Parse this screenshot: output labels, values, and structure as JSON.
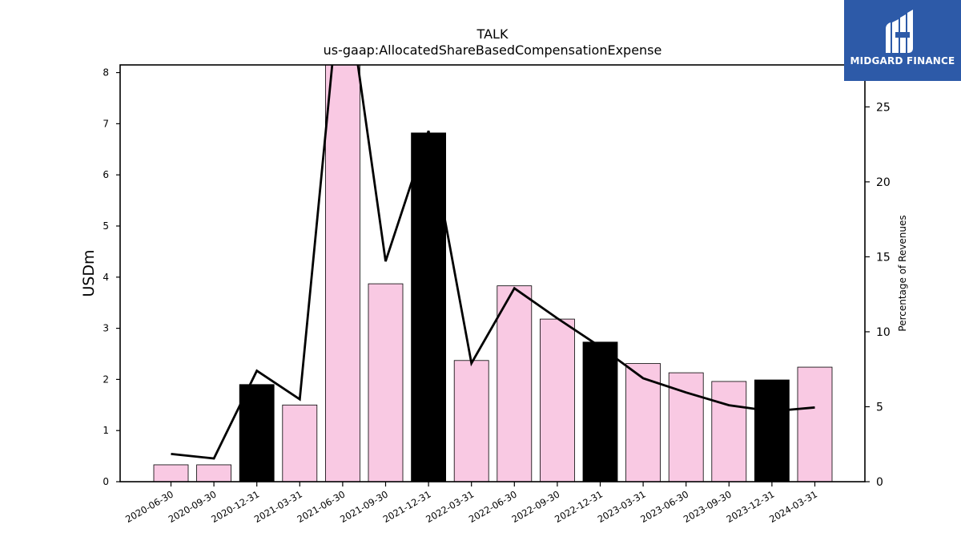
{
  "brand": {
    "name": "MIDGARD FINANCE",
    "logo_icon": "midgard-logo-icon",
    "bg_color": "#2d5aa8"
  },
  "chart_data": {
    "type": "bar",
    "title": "TALK",
    "subtitle": "us-gaap:AllocatedShareBasedCompensationExpense",
    "ylabel": "USDm",
    "ylabel_right": "Percentage of Revenues",
    "ylim": [
      0,
      8.15
    ],
    "ylim_right": [
      0,
      27.8
    ],
    "yticks": [
      0,
      1,
      2,
      3,
      4,
      5,
      6,
      7,
      8
    ],
    "yticks_right": [
      0,
      5,
      10,
      15,
      20,
      25
    ],
    "categories": [
      "2020-06-30",
      "2020-09-30",
      "2020-12-31",
      "2021-03-31",
      "2021-06-30",
      "2021-09-30",
      "2021-12-31",
      "2022-03-31",
      "2022-06-30",
      "2022-09-30",
      "2022-12-31",
      "2023-03-31",
      "2023-06-30",
      "2023-09-30",
      "2023-12-31",
      "2024-03-31"
    ],
    "series": [
      {
        "type": "bar",
        "axis": "left",
        "values": [
          0.33,
          0.33,
          1.9,
          1.5,
          8.15,
          3.87,
          6.82,
          2.37,
          3.83,
          3.18,
          2.73,
          2.31,
          2.13,
          1.96,
          1.99,
          2.24
        ],
        "colors": [
          "#f9c9e3",
          "#f9c9e3",
          "#000000",
          "#f9c9e3",
          "#f9c9e3",
          "#f9c9e3",
          "#000000",
          "#f9c9e3",
          "#f9c9e3",
          "#f9c9e3",
          "#000000",
          "#f9c9e3",
          "#f9c9e3",
          "#f9c9e3",
          "#000000",
          "#f9c9e3"
        ]
      },
      {
        "type": "line",
        "axis": "right",
        "color": "#000000",
        "values": [
          1.85,
          1.55,
          7.4,
          5.5,
          35.0,
          14.7,
          23.4,
          7.9,
          12.9,
          10.9,
          9.0,
          6.9,
          5.95,
          5.1,
          4.7,
          4.95
        ]
      }
    ],
    "grid": false,
    "legend": "none"
  }
}
